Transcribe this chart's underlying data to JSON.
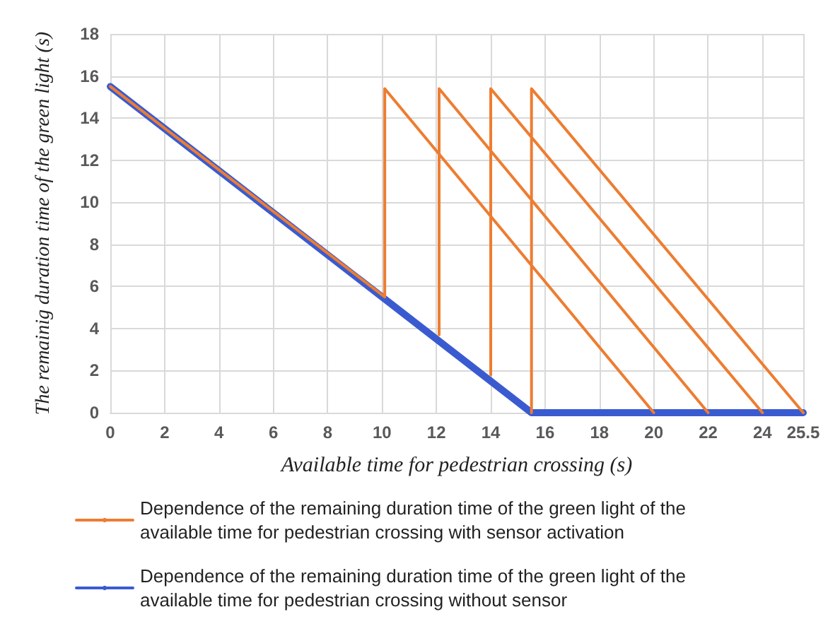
{
  "chart_data": {
    "type": "line",
    "xlabel": "Available time for pedestrian crossing (s)",
    "ylabel": "The remainig duration time of the green light (s)",
    "xlim": [
      0,
      25.5
    ],
    "xticks": [
      0,
      2,
      4,
      6,
      8,
      10,
      12,
      14,
      16,
      18,
      20,
      22,
      24,
      25.5
    ],
    "ylim": [
      0,
      18
    ],
    "yticks": [
      0,
      2,
      4,
      6,
      8,
      10,
      12,
      14,
      16,
      18
    ],
    "grid": true,
    "legend": "bottom",
    "marker": "none",
    "line_style": "solid",
    "series": [
      {
        "name": "Dependence of the remaining duration time of the green light of the available time for pedestrian crossing with sensor activation",
        "color": "#ed7d31",
        "x": [
          0,
          10.1,
          10.1,
          20,
          null,
          12.1,
          12.1,
          22,
          null,
          14,
          14,
          24,
          null,
          15.5,
          15.5,
          25.5
        ],
        "values": [
          15.5,
          5.5,
          15.4,
          0,
          null,
          3.7,
          15.4,
          0,
          null,
          1.8,
          15.4,
          0,
          null,
          0,
          15.4,
          0
        ]
      },
      {
        "name": "Dependence of the remaining duration time of the green light of the available time for pedestrian crossing without sensor",
        "color": "#3a5bd0",
        "x": [
          0,
          15.5,
          25.5
        ],
        "values": [
          15.5,
          0,
          0
        ]
      }
    ]
  }
}
